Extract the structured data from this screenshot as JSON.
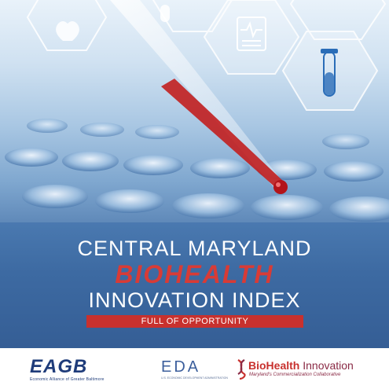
{
  "title": {
    "line1": "CENTRAL MARYLAND",
    "line2": "BIOHEALTH",
    "line3": "INNOVATION INDEX",
    "tagline": "FULL OF OPPORTUNITY"
  },
  "logos": {
    "eagb": {
      "mark": "EAGB",
      "subtitle": "Economic Alliance of Greater Baltimore"
    },
    "eda": {
      "mark": "EDA",
      "subtitle": "U.S. ECONOMIC DEVELOPMENT ADMINISTRATION"
    },
    "biohealth": {
      "name_bold": "BioHealth",
      "name_light": " Innovation",
      "subtitle": "Maryland's Commercialization Collaborative"
    }
  },
  "colors": {
    "band_blue": "#3d6aa2",
    "accent_red": "#c8312e",
    "eagb_navy": "#1f3c7a"
  },
  "icons": [
    "hexagon-ekg-monitor-icon",
    "hexagon-test-tube-icon",
    "hexagon-heart-icon",
    "hexagon-pill-icon"
  ]
}
